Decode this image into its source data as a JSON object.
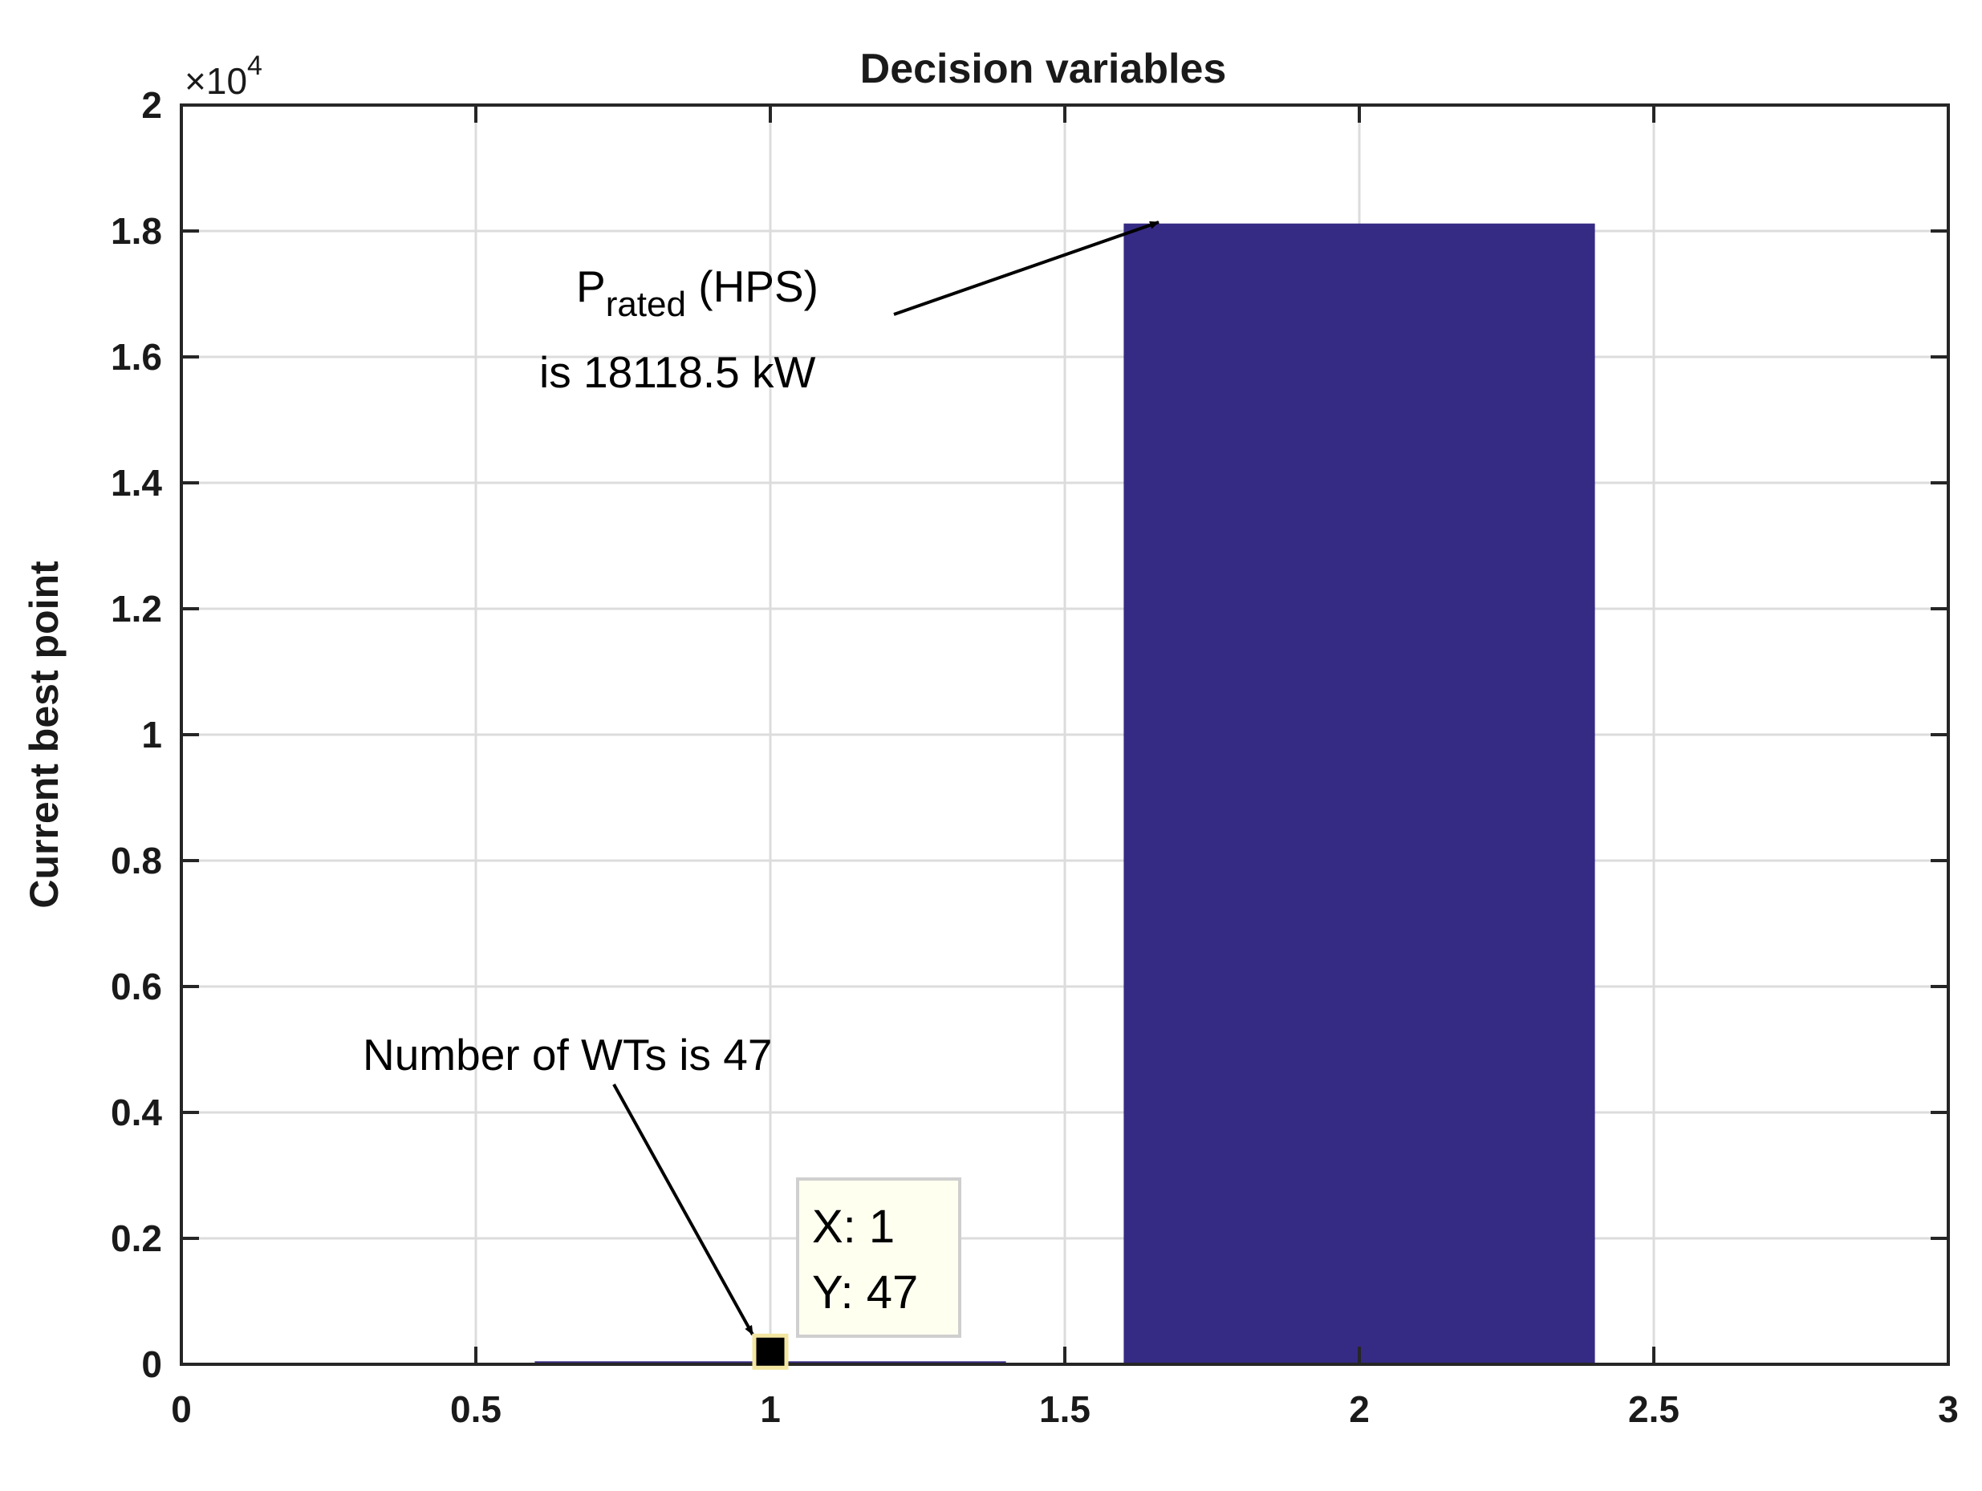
{
  "chart_data": {
    "type": "bar",
    "title": "Decision variables",
    "xlabel": "",
    "ylabel": "Current best point",
    "x": [
      1,
      2
    ],
    "values": [
      47,
      18118.5
    ],
    "xlim": [
      0,
      3
    ],
    "ylim": [
      0,
      20000
    ],
    "x_ticks": [
      "0",
      "0.5",
      "1",
      "1.5",
      "2",
      "2.5",
      "3"
    ],
    "y_ticks": [
      "0",
      "0.2",
      "0.4",
      "0.6",
      "0.8",
      "1",
      "1.2",
      "1.4",
      "1.6",
      "1.8",
      "2"
    ],
    "y_exponent": {
      "base": "×10",
      "power": "4"
    },
    "grid": true,
    "bar_color": "#352a84",
    "annotations": [
      {
        "name": "hps",
        "lines": [
          {
            "main": "P",
            "sub": "rated",
            "rest": " (HPS)"
          },
          "is 18118.5 kW"
        ]
      },
      {
        "name": "wt",
        "text": "Number of WTs is 47"
      }
    ],
    "datatip": {
      "x_label": "X: 1",
      "y_label": "Y: 47"
    }
  }
}
